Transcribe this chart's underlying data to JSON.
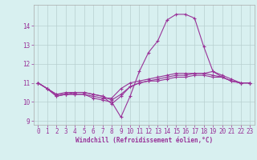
{
  "xlabel": "Windchill (Refroidissement éolien,°C)",
  "x": [
    0,
    1,
    2,
    3,
    4,
    5,
    6,
    7,
    8,
    9,
    10,
    11,
    12,
    13,
    14,
    15,
    16,
    17,
    18,
    19,
    20,
    21,
    22,
    23
  ],
  "line1": [
    11.0,
    10.7,
    10.3,
    10.4,
    10.4,
    10.4,
    10.2,
    10.1,
    10.0,
    9.2,
    10.3,
    11.6,
    12.6,
    13.2,
    14.3,
    14.6,
    14.6,
    14.4,
    12.9,
    11.6,
    11.3,
    11.1,
    11.0,
    11.0
  ],
  "line2": [
    11.0,
    10.7,
    10.3,
    10.4,
    10.5,
    10.5,
    10.4,
    10.3,
    9.9,
    10.3,
    10.8,
    11.0,
    11.1,
    11.2,
    11.3,
    11.4,
    11.4,
    11.5,
    11.5,
    11.6,
    11.4,
    11.2,
    11.0,
    11.0
  ],
  "line3": [
    11.0,
    10.7,
    10.4,
    10.5,
    10.5,
    10.5,
    10.4,
    10.3,
    10.1,
    10.4,
    10.8,
    11.0,
    11.1,
    11.1,
    11.2,
    11.3,
    11.3,
    11.4,
    11.4,
    11.3,
    11.3,
    11.1,
    11.0,
    11.0
  ],
  "line4": [
    11.0,
    10.7,
    10.4,
    10.4,
    10.4,
    10.4,
    10.3,
    10.2,
    10.2,
    10.7,
    11.0,
    11.1,
    11.2,
    11.3,
    11.4,
    11.5,
    11.5,
    11.5,
    11.5,
    11.4,
    11.3,
    11.1,
    11.0,
    11.0
  ],
  "line_color": "#993399",
  "bg_color": "#d8f0f0",
  "grid_color": "#b8d0d0",
  "ylim": [
    8.8,
    15.1
  ],
  "xlim": [
    -0.5,
    23.5
  ],
  "yticks": [
    9,
    10,
    11,
    12,
    13,
    14
  ],
  "xticks": [
    0,
    1,
    2,
    3,
    4,
    5,
    6,
    7,
    8,
    9,
    10,
    11,
    12,
    13,
    14,
    15,
    16,
    17,
    18,
    19,
    20,
    21,
    22,
    23
  ],
  "tick_fontsize": 5.5,
  "xlabel_fontsize": 5.5,
  "marker_size": 3,
  "linewidth": 0.8
}
